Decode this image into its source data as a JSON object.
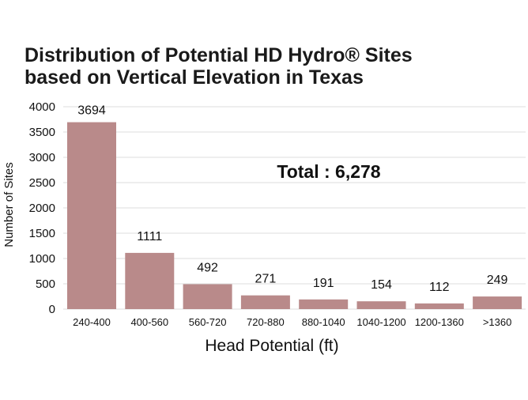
{
  "chart_data": {
    "type": "bar",
    "title": "Distribution of Potential HD Hydro® Sites\nbased on Vertical Elevation in Texas",
    "xlabel": "Head Potential (ft)",
    "ylabel": "Number of Sites",
    "annotation": "Total : 6,278",
    "categories": [
      "240-400",
      "400-560",
      "560-720",
      "720-880",
      "880-1040",
      "1040-1200",
      "1200-1360",
      ">1360"
    ],
    "values": [
      3694,
      1111,
      492,
      271,
      191,
      154,
      112,
      249
    ],
    "ylim": [
      0,
      4000
    ],
    "yticks": [
      0,
      500,
      1000,
      1500,
      2000,
      2500,
      3000,
      3500,
      4000
    ],
    "grid": true,
    "bar_color": "#b98a8a",
    "grid_color": "#dcdcdc"
  }
}
